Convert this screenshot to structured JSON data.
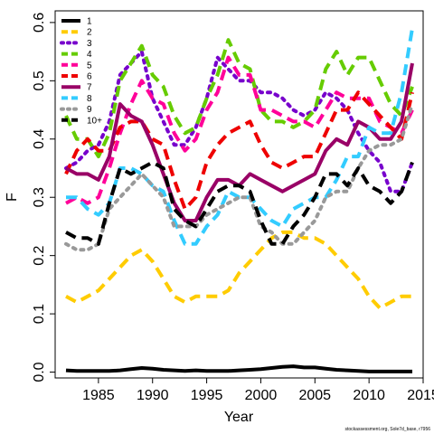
{
  "chart_data": {
    "type": "line",
    "xlabel": "Year",
    "ylabel": "F",
    "x_ticks": [
      1985,
      1990,
      1995,
      2000,
      2005,
      2010,
      2015
    ],
    "y_ticks": [
      0.0,
      0.1,
      0.2,
      0.3,
      0.4,
      0.5,
      0.6
    ],
    "y_tick_labels": [
      "0.0",
      "0.1",
      "0.2",
      "0.3",
      "0.4",
      "0.5",
      "0.6"
    ],
    "xlim": [
      1981,
      2015
    ],
    "ylim": [
      -0.01,
      0.62
    ],
    "grid": false,
    "legend_position": "top-left",
    "x": [
      1982,
      1983,
      1984,
      1985,
      1986,
      1987,
      1988,
      1989,
      1990,
      1991,
      1992,
      1993,
      1994,
      1995,
      1996,
      1997,
      1998,
      1999,
      2000,
      2001,
      2002,
      2003,
      2004,
      2005,
      2006,
      2007,
      2008,
      2009,
      2010,
      2011,
      2012,
      2013,
      2014
    ],
    "series": [
      {
        "name": "1",
        "color": "#000000",
        "dash": "solid",
        "values": [
          0.003,
          0.002,
          0.002,
          0.002,
          0.002,
          0.003,
          0.005,
          0.007,
          0.006,
          0.004,
          0.003,
          0.002,
          0.003,
          0.002,
          0.002,
          0.002,
          0.003,
          0.004,
          0.005,
          0.007,
          0.009,
          0.01,
          0.008,
          0.008,
          0.006,
          0.004,
          0.003,
          0.002,
          0.001,
          0.001,
          0.001,
          0.001,
          0.001
        ]
      },
      {
        "name": "2",
        "color": "#FFCC00",
        "dash": "dash",
        "values": [
          0.13,
          0.12,
          0.13,
          0.14,
          0.16,
          0.18,
          0.2,
          0.21,
          0.19,
          0.16,
          0.13,
          0.12,
          0.13,
          0.13,
          0.13,
          0.14,
          0.17,
          0.19,
          0.21,
          0.23,
          0.24,
          0.24,
          0.23,
          0.23,
          0.22,
          0.2,
          0.18,
          0.16,
          0.13,
          0.11,
          0.12,
          0.13,
          0.13
        ]
      },
      {
        "name": "3",
        "color": "#7700CC",
        "dash": "dot",
        "values": [
          0.35,
          0.36,
          0.38,
          0.39,
          0.43,
          0.51,
          0.53,
          0.55,
          0.47,
          0.43,
          0.39,
          0.39,
          0.42,
          0.47,
          0.54,
          0.52,
          0.5,
          0.5,
          0.48,
          0.48,
          0.47,
          0.45,
          0.44,
          0.45,
          0.48,
          0.47,
          0.45,
          0.41,
          0.38,
          0.36,
          0.31,
          0.31,
          0.36
        ]
      },
      {
        "name": "4",
        "color": "#66CC00",
        "dash": "dash",
        "values": [
          0.44,
          0.4,
          0.4,
          0.37,
          0.41,
          0.5,
          0.53,
          0.56,
          0.51,
          0.49,
          0.44,
          0.41,
          0.42,
          0.47,
          0.51,
          0.57,
          0.53,
          0.52,
          0.45,
          0.43,
          0.43,
          0.42,
          0.43,
          0.45,
          0.52,
          0.55,
          0.51,
          0.54,
          0.54,
          0.5,
          0.46,
          0.44,
          0.49
        ]
      },
      {
        "name": "5",
        "color": "#FF0099",
        "dash": "dash",
        "values": [
          0.29,
          0.3,
          0.29,
          0.3,
          0.35,
          0.41,
          0.46,
          0.5,
          0.47,
          0.46,
          0.41,
          0.38,
          0.4,
          0.45,
          0.48,
          0.54,
          0.51,
          0.51,
          0.45,
          0.45,
          0.44,
          0.43,
          0.43,
          0.42,
          0.45,
          0.48,
          0.47,
          0.47,
          0.47,
          0.43,
          0.42,
          0.41,
          0.45
        ]
      },
      {
        "name": "6",
        "color": "#EE0000",
        "dash": "dash",
        "values": [
          0.34,
          0.38,
          0.4,
          0.38,
          0.38,
          0.42,
          0.43,
          0.43,
          0.4,
          0.39,
          0.33,
          0.28,
          0.3,
          0.36,
          0.39,
          0.41,
          0.42,
          0.43,
          0.39,
          0.36,
          0.35,
          0.36,
          0.37,
          0.37,
          0.41,
          0.45,
          0.45,
          0.48,
          0.46,
          0.44,
          0.42,
          0.4,
          0.48
        ]
      },
      {
        "name": "7",
        "color": "#990066",
        "dash": "solid",
        "values": [
          0.35,
          0.34,
          0.34,
          0.33,
          0.37,
          0.46,
          0.44,
          0.43,
          0.39,
          0.34,
          0.29,
          0.26,
          0.26,
          0.3,
          0.33,
          0.33,
          0.32,
          0.34,
          0.33,
          0.32,
          0.31,
          0.32,
          0.33,
          0.34,
          0.38,
          0.4,
          0.39,
          0.43,
          0.42,
          0.4,
          0.4,
          0.43,
          0.53
        ]
      },
      {
        "name": "8",
        "color": "#33CCFF",
        "dash": "dash",
        "values": [
          0.3,
          0.3,
          0.28,
          0.27,
          0.29,
          0.35,
          0.35,
          0.34,
          0.32,
          0.31,
          0.26,
          0.22,
          0.22,
          0.25,
          0.27,
          0.31,
          0.3,
          0.3,
          0.28,
          0.26,
          0.25,
          0.28,
          0.29,
          0.3,
          0.3,
          0.33,
          0.37,
          0.37,
          0.42,
          0.41,
          0.41,
          0.48,
          0.59
        ]
      },
      {
        "name": "9",
        "color": "#999999",
        "dash": "dot",
        "values": [
          0.22,
          0.21,
          0.21,
          0.22,
          0.28,
          0.3,
          0.32,
          0.34,
          0.32,
          0.3,
          0.25,
          0.25,
          0.25,
          0.27,
          0.28,
          0.29,
          0.3,
          0.3,
          0.25,
          0.24,
          0.22,
          0.22,
          0.24,
          0.26,
          0.3,
          0.31,
          0.31,
          0.35,
          0.38,
          0.39,
          0.39,
          0.4,
          0.46
        ]
      },
      {
        "name": "10+",
        "color": "#000000",
        "dash": "dash",
        "values": [
          0.24,
          0.23,
          0.23,
          0.22,
          0.29,
          0.35,
          0.34,
          0.35,
          0.36,
          0.35,
          0.28,
          0.26,
          0.25,
          0.28,
          0.31,
          0.32,
          0.32,
          0.31,
          0.26,
          0.22,
          0.22,
          0.25,
          0.27,
          0.3,
          0.34,
          0.34,
          0.32,
          0.35,
          0.32,
          0.31,
          0.29,
          0.31,
          0.36
        ]
      }
    ]
  },
  "caption": "stockassessment.org, Sole7d_base, r7956"
}
